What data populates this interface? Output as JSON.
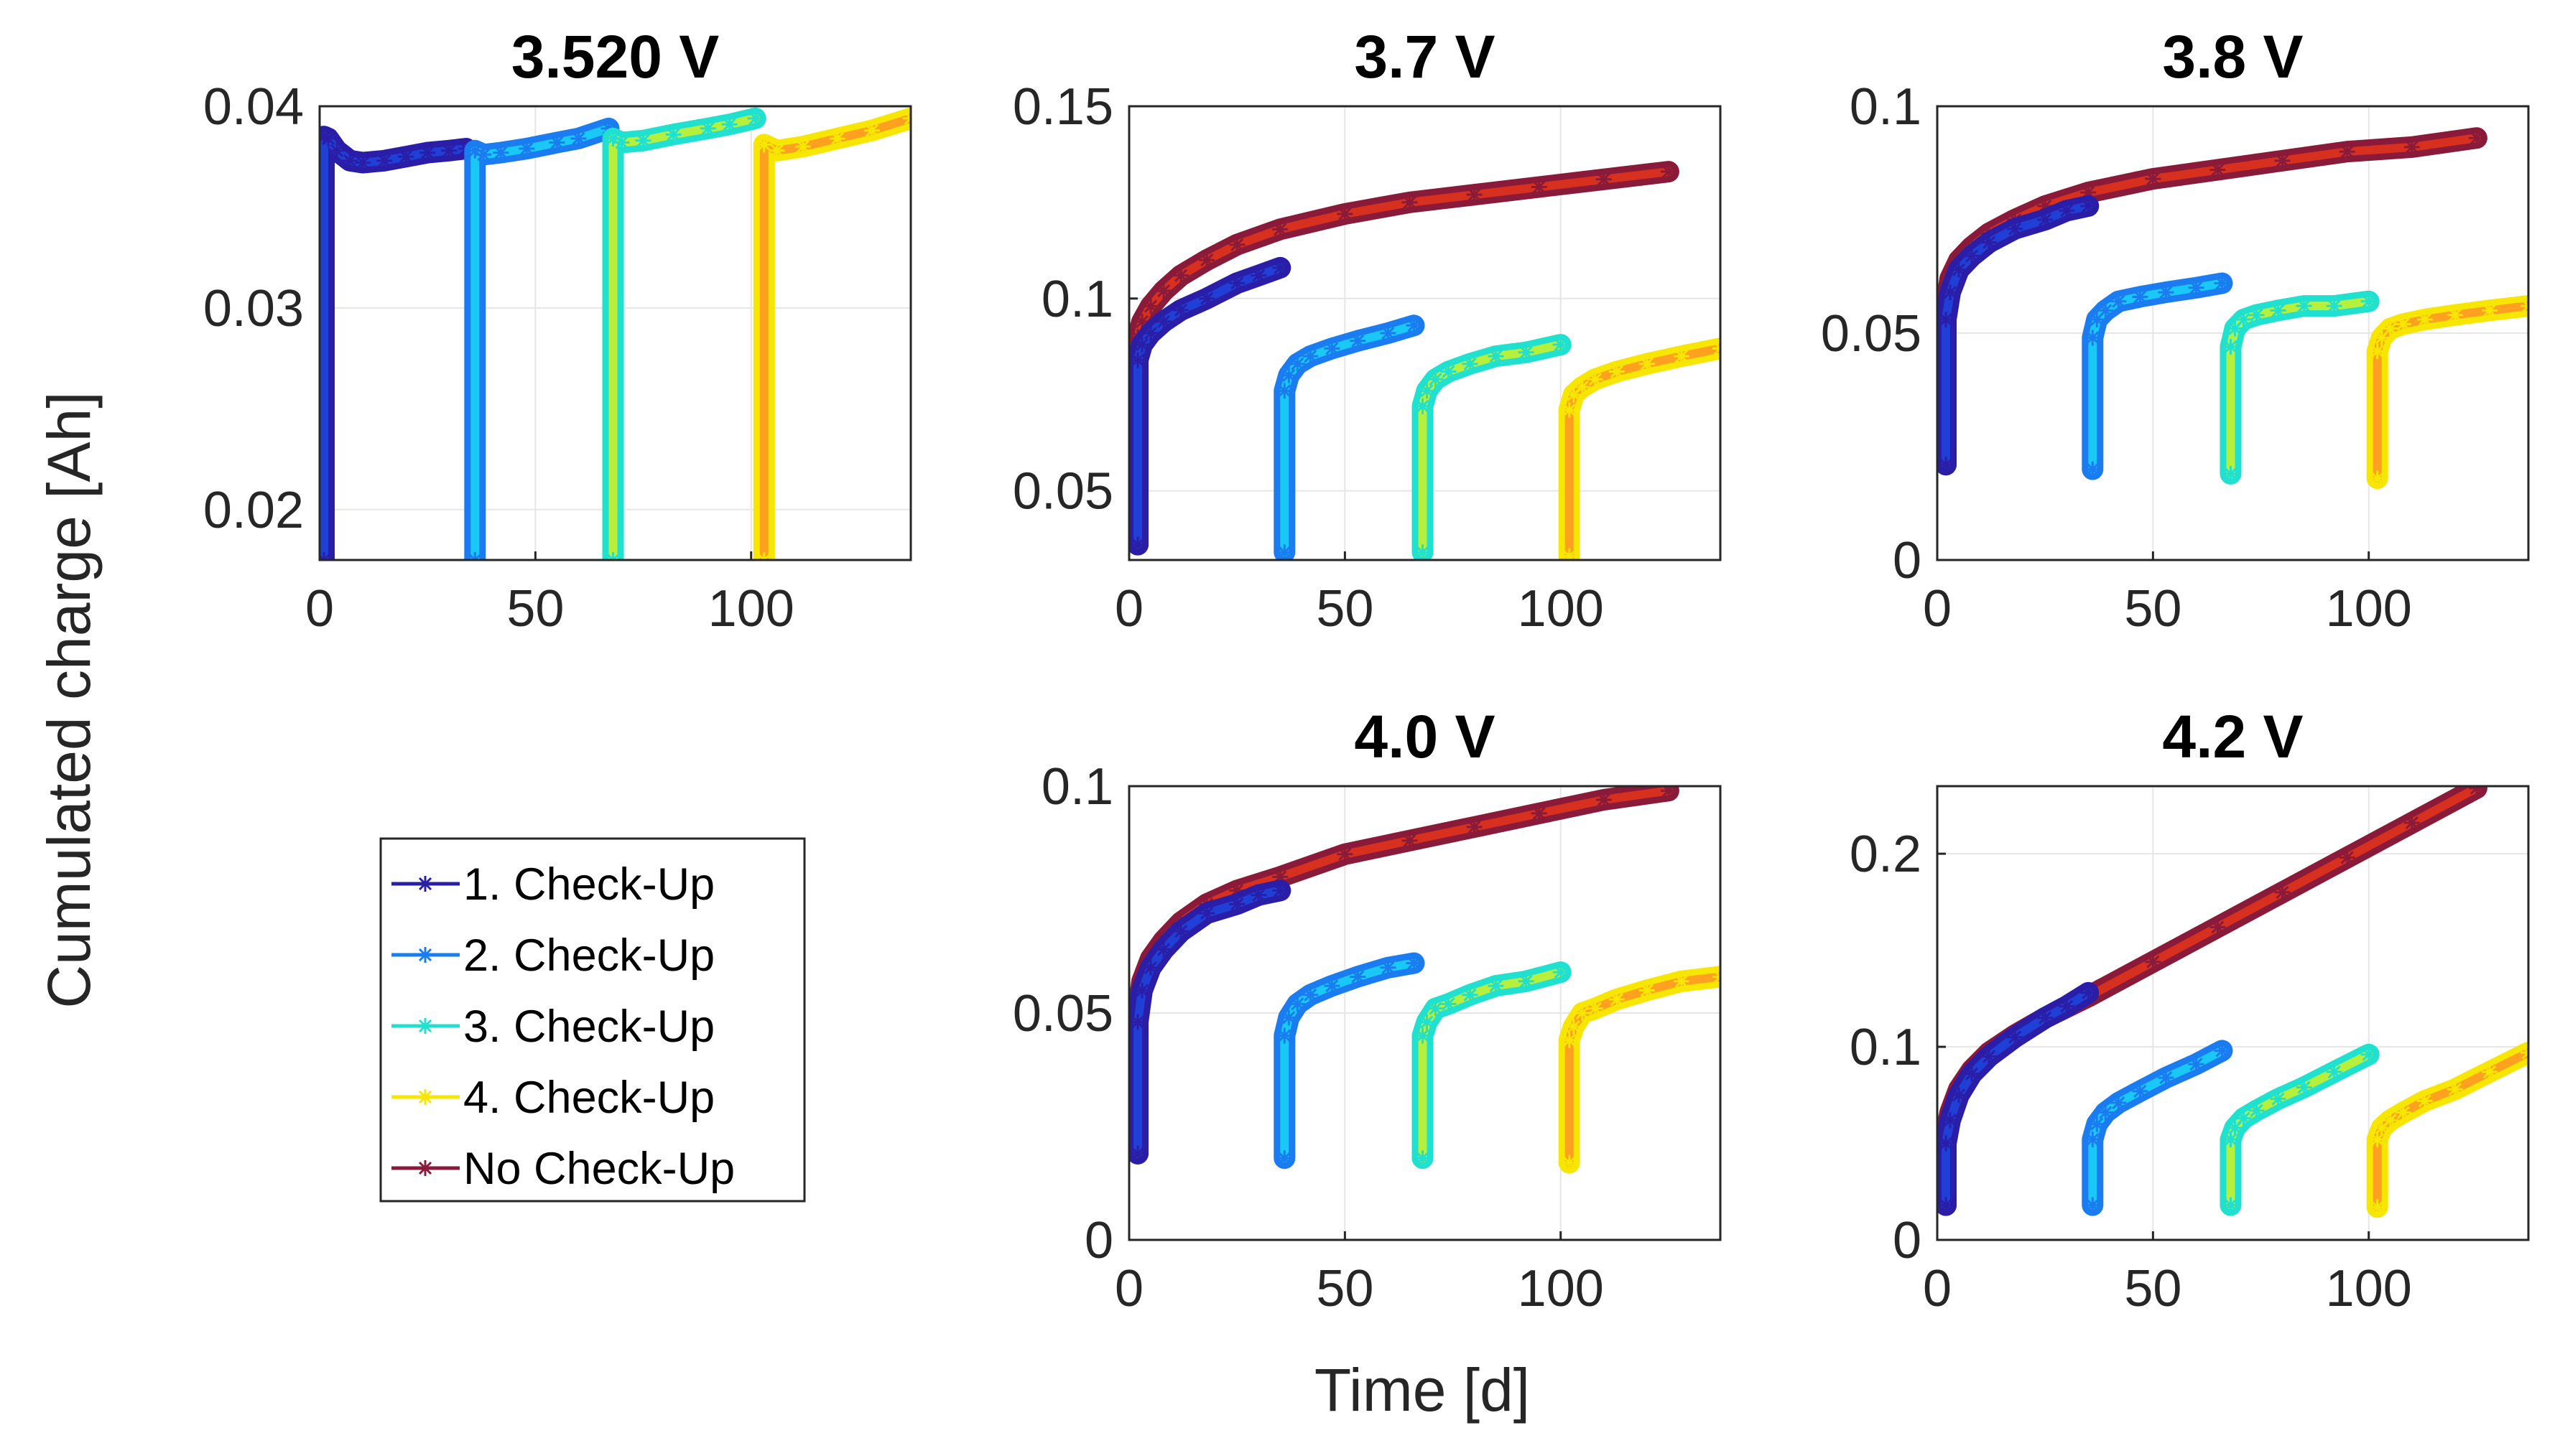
{
  "chart_data": {
    "type": "line",
    "ylabel": "Cumulated charge [Ah]",
    "xlabel": "Time [d]",
    "legend": {
      "placement": "left",
      "entries": [
        "1. Check-Up",
        "2. Check-Up",
        "3. Check-Up",
        "4. Check-Up",
        "No Check-Up"
      ]
    },
    "series_colors": [
      "#1f3fd6",
      "#19c8f5",
      "#b7f03c",
      "#ffa020",
      "#d7301f"
    ],
    "series_edge_colors": [
      "#2a1ea8",
      "#1a7cf0",
      "#20e0d0",
      "#f6e600",
      "#8a1a3a"
    ],
    "grid": true,
    "panels": [
      {
        "title": "3.520 V",
        "xlim": [
          0,
          137
        ],
        "ylim": [
          0.0175,
          0.04
        ],
        "xticks": [
          "0",
          "50",
          "100"
        ],
        "yticks": [
          "0.02",
          "0.03",
          "0.04"
        ],
        "ytick_values": [
          0.02,
          0.03,
          0.04
        ],
        "series": [
          {
            "name": "1. Check-Up",
            "x": [
              1,
              2,
              4,
              7,
              10,
              15,
              20,
              25,
              30,
              34
            ],
            "y": [
              0.0385,
              0.0384,
              0.0378,
              0.0373,
              0.0372,
              0.0373,
              0.0375,
              0.0377,
              0.0378,
              0.0379
            ],
            "x_drop": 1,
            "y_drop": 0.0175
          },
          {
            "name": "2. Check-Up",
            "x": [
              36,
              38,
              42,
              48,
              55,
              60,
              67
            ],
            "y": [
              0.0378,
              0.0376,
              0.0377,
              0.0379,
              0.0382,
              0.0384,
              0.0389
            ],
            "x_drop": 36,
            "y_drop": 0.0175
          },
          {
            "name": "3. Check-Up",
            "x": [
              68,
              70,
              75,
              82,
              90,
              95,
              101
            ],
            "y": [
              0.0384,
              0.0382,
              0.0383,
              0.0386,
              0.0389,
              0.0391,
              0.0394
            ],
            "x_drop": 68,
            "y_drop": 0.0175
          },
          {
            "name": "4. Check-Up",
            "x": [
              103,
              106,
              112,
              120,
              128,
              137
            ],
            "y": [
              0.0381,
              0.0378,
              0.038,
              0.0384,
              0.0388,
              0.0394
            ],
            "x_drop": 103,
            "y_drop": 0.0175
          }
        ]
      },
      {
        "title": "3.7 V",
        "xlim": [
          0,
          137
        ],
        "ylim": [
          0.032,
          0.15
        ],
        "xticks": [
          "0",
          "50",
          "100"
        ],
        "yticks": [
          "0.05",
          "0.1",
          "0.15"
        ],
        "ytick_values": [
          0.05,
          0.1,
          0.15
        ],
        "series": [
          {
            "name": "No Check-Up",
            "x": [
              2,
              3,
              5,
              8,
              12,
              18,
              25,
              35,
              50,
              65,
              80,
              95,
              110,
              125
            ],
            "y": [
              0.09,
              0.094,
              0.098,
              0.102,
              0.106,
              0.11,
              0.114,
              0.118,
              0.122,
              0.125,
              0.127,
              0.129,
              0.131,
              0.133
            ],
            "x_drop": 2,
            "y_drop": 0.036
          },
          {
            "name": "1. Check-Up",
            "x": [
              2,
              3,
              5,
              8,
              12,
              18,
              25,
              30,
              35
            ],
            "y": [
              0.084,
              0.088,
              0.091,
              0.094,
              0.097,
              0.1,
              0.104,
              0.106,
              0.108
            ],
            "x_drop": 2,
            "y_drop": 0.036
          },
          {
            "name": "2. Check-Up",
            "x": [
              36,
              37,
              39,
              42,
              47,
              53,
              60,
              66
            ],
            "y": [
              0.076,
              0.08,
              0.083,
              0.085,
              0.087,
              0.089,
              0.091,
              0.093
            ],
            "x_drop": 36,
            "y_drop": 0.034
          },
          {
            "name": "3. Check-Up",
            "x": [
              68,
              69,
              71,
              74,
              79,
              85,
              92,
              100
            ],
            "y": [
              0.072,
              0.076,
              0.079,
              0.081,
              0.083,
              0.085,
              0.086,
              0.088
            ],
            "x_drop": 68,
            "y_drop": 0.034
          },
          {
            "name": "4. Check-Up",
            "x": [
              102,
              103,
              105,
              108,
              113,
              120,
              128,
              137
            ],
            "y": [
              0.071,
              0.075,
              0.077,
              0.079,
              0.081,
              0.083,
              0.085,
              0.087
            ],
            "x_drop": 102,
            "y_drop": 0.033
          }
        ]
      },
      {
        "title": "3.8 V",
        "xlim": [
          0,
          137
        ],
        "ylim": [
          0,
          0.1
        ],
        "xticks": [
          "0",
          "50",
          "100"
        ],
        "yticks": [
          "0",
          "0.05",
          "0.1"
        ],
        "ytick_values": [
          0,
          0.05,
          0.1
        ],
        "series": [
          {
            "name": "No Check-Up",
            "x": [
              2,
              3,
              5,
              8,
              12,
              18,
              25,
              35,
              50,
              65,
              80,
              95,
              110,
              125
            ],
            "y": [
              0.056,
              0.062,
              0.066,
              0.069,
              0.072,
              0.075,
              0.078,
              0.081,
              0.084,
              0.086,
              0.088,
              0.09,
              0.091,
              0.093
            ],
            "x_drop": 2,
            "y_drop": 0.021
          },
          {
            "name": "1. Check-Up",
            "x": [
              2,
              3,
              5,
              8,
              12,
              18,
              25,
              30,
              35
            ],
            "y": [
              0.053,
              0.059,
              0.064,
              0.067,
              0.07,
              0.073,
              0.075,
              0.077,
              0.078
            ],
            "x_drop": 2,
            "y_drop": 0.021
          },
          {
            "name": "2. Check-Up",
            "x": [
              36,
              37,
              39,
              42,
              47,
              53,
              60,
              66
            ],
            "y": [
              0.049,
              0.053,
              0.055,
              0.057,
              0.058,
              0.059,
              0.06,
              0.061
            ],
            "x_drop": 36,
            "y_drop": 0.02
          },
          {
            "name": "3. Check-Up",
            "x": [
              68,
              69,
              71,
              74,
              79,
              85,
              92,
              100
            ],
            "y": [
              0.047,
              0.051,
              0.053,
              0.054,
              0.055,
              0.056,
              0.056,
              0.057
            ],
            "x_drop": 68,
            "y_drop": 0.019
          },
          {
            "name": "4. Check-Up",
            "x": [
              102,
              103,
              105,
              108,
              113,
              120,
              128,
              137
            ],
            "y": [
              0.046,
              0.049,
              0.051,
              0.052,
              0.053,
              0.054,
              0.055,
              0.056
            ],
            "x_drop": 102,
            "y_drop": 0.018
          }
        ]
      },
      {
        "title": "4.0 V",
        "xlim": [
          0,
          137
        ],
        "ylim": [
          0,
          0.1
        ],
        "xticks": [
          "0",
          "50",
          "100"
        ],
        "yticks": [
          "0",
          "0.05",
          "0.1"
        ],
        "ytick_values": [
          0,
          0.05,
          0.1
        ],
        "series": [
          {
            "name": "No Check-Up",
            "x": [
              2,
              3,
              5,
              8,
              12,
              18,
              25,
              35,
              50,
              65,
              80,
              95,
              110,
              125
            ],
            "y": [
              0.05,
              0.057,
              0.062,
              0.066,
              0.07,
              0.074,
              0.077,
              0.08,
              0.085,
              0.088,
              0.091,
              0.094,
              0.097,
              0.099
            ],
            "x_drop": 2,
            "y_drop": 0.019
          },
          {
            "name": "1. Check-Up",
            "x": [
              2,
              3,
              5,
              8,
              12,
              18,
              25,
              30,
              35
            ],
            "y": [
              0.048,
              0.055,
              0.06,
              0.064,
              0.068,
              0.072,
              0.074,
              0.076,
              0.077
            ],
            "x_drop": 2,
            "y_drop": 0.019
          },
          {
            "name": "2. Check-Up",
            "x": [
              36,
              37,
              39,
              42,
              47,
              53,
              60,
              66
            ],
            "y": [
              0.045,
              0.049,
              0.052,
              0.054,
              0.056,
              0.058,
              0.06,
              0.061
            ],
            "x_drop": 36,
            "y_drop": 0.018
          },
          {
            "name": "3. Check-Up",
            "x": [
              68,
              69,
              71,
              74,
              79,
              85,
              92,
              100
            ],
            "y": [
              0.045,
              0.048,
              0.051,
              0.052,
              0.054,
              0.056,
              0.057,
              0.059
            ],
            "x_drop": 68,
            "y_drop": 0.018
          },
          {
            "name": "4. Check-Up",
            "x": [
              102,
              103,
              105,
              108,
              113,
              120,
              128,
              137
            ],
            "y": [
              0.044,
              0.047,
              0.05,
              0.051,
              0.053,
              0.055,
              0.057,
              0.058
            ],
            "x_drop": 102,
            "y_drop": 0.017
          }
        ]
      },
      {
        "title": "4.2 V",
        "xlim": [
          0,
          137
        ],
        "ylim": [
          0,
          0.235
        ],
        "xticks": [
          "0",
          "50",
          "100"
        ],
        "yticks": [
          "0",
          "0.1",
          "0.2"
        ],
        "ytick_values": [
          0,
          0.1,
          0.2
        ],
        "series": [
          {
            "name": "No Check-Up",
            "x": [
              2,
              3,
              5,
              8,
              12,
              18,
              25,
              35,
              50,
              65,
              80,
              95,
              110,
              125
            ],
            "y": [
              0.055,
              0.066,
              0.078,
              0.088,
              0.097,
              0.106,
              0.115,
              0.126,
              0.144,
              0.162,
              0.18,
              0.198,
              0.216,
              0.234
            ],
            "x_drop": 2,
            "y_drop": 0.018
          },
          {
            "name": "1. Check-Up",
            "x": [
              2,
              3,
              5,
              8,
              12,
              18,
              25,
              30,
              35
            ],
            "y": [
              0.05,
              0.062,
              0.075,
              0.086,
              0.095,
              0.105,
              0.115,
              0.121,
              0.128
            ],
            "x_drop": 2,
            "y_drop": 0.018
          },
          {
            "name": "2. Check-Up",
            "x": [
              36,
              37,
              39,
              42,
              47,
              53,
              60,
              66
            ],
            "y": [
              0.052,
              0.06,
              0.066,
              0.071,
              0.077,
              0.084,
              0.091,
              0.098
            ],
            "x_drop": 36,
            "y_drop": 0.018
          },
          {
            "name": "3. Check-Up",
            "x": [
              68,
              69,
              71,
              74,
              79,
              85,
              92,
              100
            ],
            "y": [
              0.052,
              0.058,
              0.063,
              0.067,
              0.073,
              0.079,
              0.087,
              0.096
            ],
            "x_drop": 68,
            "y_drop": 0.018
          },
          {
            "name": "4. Check-Up",
            "x": [
              102,
              103,
              105,
              108,
              113,
              120,
              128,
              137
            ],
            "y": [
              0.052,
              0.058,
              0.062,
              0.066,
              0.072,
              0.078,
              0.087,
              0.097
            ],
            "x_drop": 102,
            "y_drop": 0.017
          }
        ]
      }
    ]
  }
}
